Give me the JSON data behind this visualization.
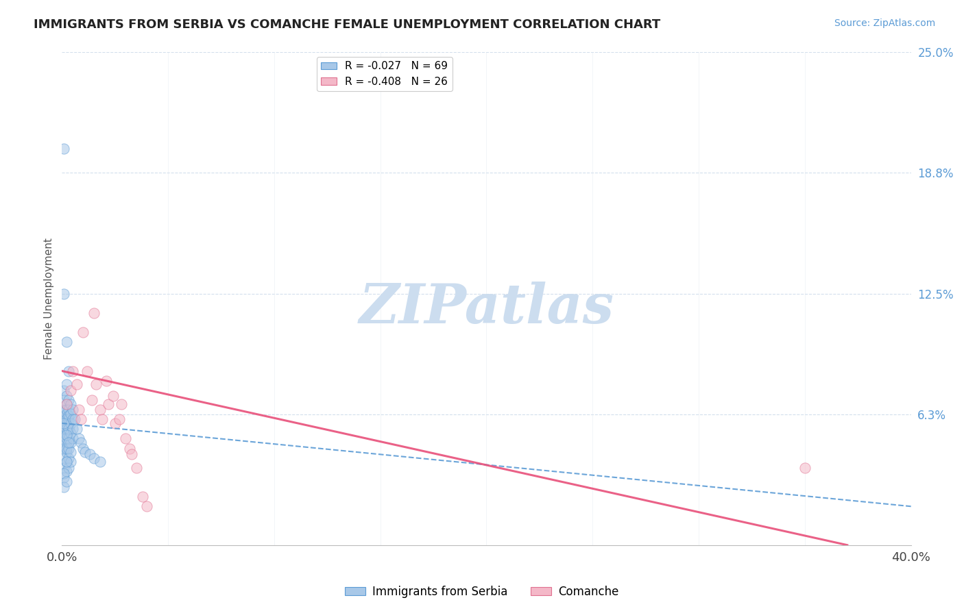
{
  "title": "IMMIGRANTS FROM SERBIA VS COMANCHE FEMALE UNEMPLOYMENT CORRELATION CHART",
  "source_text": "Source: ZipAtlas.com",
  "ylabel": "Female Unemployment",
  "x_min": 0.0,
  "x_max": 0.4,
  "y_min": -0.005,
  "y_max": 0.25,
  "y_ticks": [
    0.0,
    0.0625,
    0.125,
    0.1875,
    0.25
  ],
  "y_tick_labels": [
    "",
    "6.3%",
    "12.5%",
    "18.8%",
    "25.0%"
  ],
  "x_tick_labels": [
    "0.0%",
    "40.0%"
  ],
  "legend_entry1": "R = -0.027   N = 69",
  "legend_entry2": "R = -0.408   N = 26",
  "legend_label1": "Immigrants from Serbia",
  "legend_label2": "Comanche",
  "color_blue": "#a8c8e8",
  "color_pink": "#f4b8c8",
  "edge_blue": "#5b9bd5",
  "edge_pink": "#e07090",
  "trend_blue_color": "#5b9bd5",
  "trend_pink_color": "#e8507a",
  "watermark": "ZIPatlas",
  "watermark_color": "#ccddef",
  "blue_x": [
    0.001,
    0.001,
    0.001,
    0.001,
    0.001,
    0.001,
    0.001,
    0.001,
    0.001,
    0.001,
    0.001,
    0.001,
    0.001,
    0.001,
    0.001,
    0.002,
    0.002,
    0.002,
    0.002,
    0.002,
    0.002,
    0.002,
    0.002,
    0.002,
    0.002,
    0.002,
    0.002,
    0.002,
    0.002,
    0.002,
    0.003,
    0.003,
    0.003,
    0.003,
    0.003,
    0.003,
    0.003,
    0.003,
    0.003,
    0.003,
    0.004,
    0.004,
    0.004,
    0.004,
    0.004,
    0.004,
    0.004,
    0.005,
    0.005,
    0.005,
    0.005,
    0.006,
    0.007,
    0.008,
    0.009,
    0.01,
    0.011,
    0.013,
    0.015,
    0.018,
    0.001,
    0.002,
    0.003,
    0.001,
    0.002,
    0.003,
    0.002,
    0.001,
    0.002
  ],
  "blue_y": [
    0.2,
    0.075,
    0.065,
    0.06,
    0.055,
    0.05,
    0.045,
    0.04,
    0.035,
    0.03,
    0.025,
    0.045,
    0.055,
    0.062,
    0.07,
    0.068,
    0.063,
    0.058,
    0.053,
    0.048,
    0.043,
    0.038,
    0.033,
    0.065,
    0.072,
    0.078,
    0.06,
    0.055,
    0.05,
    0.045,
    0.07,
    0.065,
    0.06,
    0.055,
    0.05,
    0.045,
    0.04,
    0.035,
    0.055,
    0.062,
    0.068,
    0.063,
    0.058,
    0.053,
    0.048,
    0.043,
    0.038,
    0.065,
    0.06,
    0.055,
    0.05,
    0.06,
    0.055,
    0.05,
    0.048,
    0.045,
    0.043,
    0.042,
    0.04,
    0.038,
    0.125,
    0.1,
    0.085,
    0.058,
    0.052,
    0.048,
    0.038,
    0.032,
    0.028
  ],
  "pink_x": [
    0.002,
    0.004,
    0.005,
    0.007,
    0.008,
    0.009,
    0.01,
    0.012,
    0.014,
    0.015,
    0.016,
    0.018,
    0.019,
    0.021,
    0.022,
    0.024,
    0.025,
    0.027,
    0.028,
    0.03,
    0.032,
    0.033,
    0.035,
    0.35,
    0.038,
    0.04
  ],
  "pink_y": [
    0.068,
    0.075,
    0.085,
    0.078,
    0.065,
    0.06,
    0.105,
    0.085,
    0.07,
    0.115,
    0.078,
    0.065,
    0.06,
    0.08,
    0.068,
    0.072,
    0.058,
    0.06,
    0.068,
    0.05,
    0.045,
    0.042,
    0.035,
    0.035,
    0.02,
    0.015
  ],
  "blue_trend_x0": 0.0,
  "blue_trend_y0": 0.058,
  "blue_trend_x1": 0.4,
  "blue_trend_y1": 0.015,
  "pink_trend_x0": 0.0,
  "pink_trend_y0": 0.085,
  "pink_trend_x1": 0.37,
  "pink_trend_y1": -0.005
}
